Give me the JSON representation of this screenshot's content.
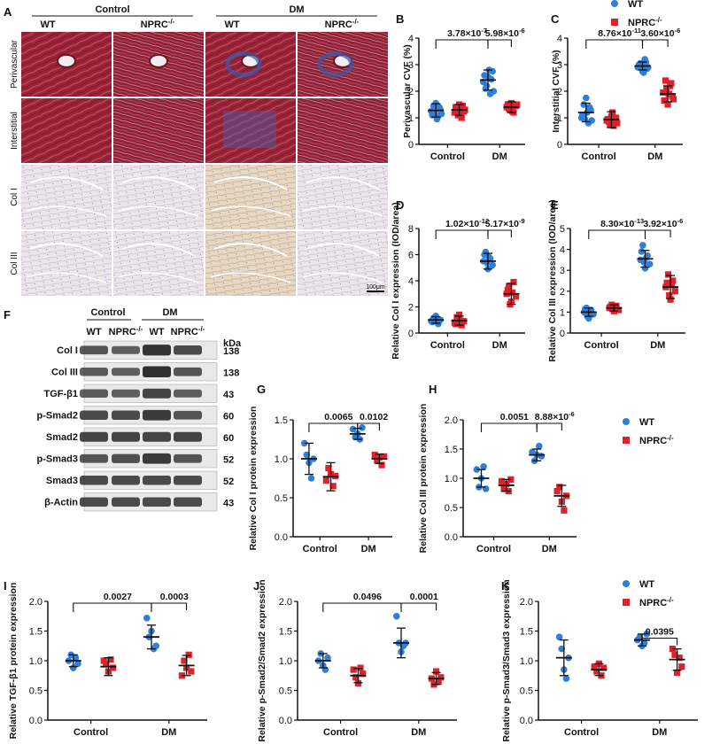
{
  "colors": {
    "wt": "#2f7fd8",
    "nprc": "#e0202a",
    "axis": "#111111",
    "stain_red": "#9a2236",
    "stain_blue": "#3a5aa8",
    "ihc_bg": "#ece6e8",
    "blot_bg": "#e9e9e9",
    "band": "#2a2a2a"
  },
  "legend_icons": {
    "wt": "circle-marker",
    "nprc": "square-marker"
  },
  "panel_a": {
    "letter": "A",
    "group_control": "Control",
    "group_dm": "DM",
    "col_labels": [
      "WT",
      "NPRC-/-",
      "WT",
      "NPRC-/-"
    ],
    "row_labels": [
      "Perivascular",
      "Interstitial",
      "Col I",
      "Col III"
    ],
    "scale_bar": "100μm"
  },
  "panel_f": {
    "letter": "F",
    "group_control": "Control",
    "group_dm": "DM",
    "col_labels": [
      "WT",
      "NPRC-/-",
      "WT",
      "NPRC-/-"
    ],
    "kda_label": "kDa",
    "proteins": [
      "Col I",
      "Col III",
      "TGF-β1",
      "p-Smad2",
      "Smad2",
      "p-Smad3",
      "Smad3",
      "β-Actin"
    ],
    "kda": [
      "138",
      "138",
      "43",
      "60",
      "60",
      "52",
      "52",
      "43"
    ]
  },
  "chart_data": [
    {
      "panel": "B",
      "type": "scatter",
      "ylabel": "Perivascular CVF (%)",
      "ylim": [
        0,
        4
      ],
      "yticks": [
        "0",
        "1",
        "2",
        "3",
        "4"
      ],
      "categories": [
        "Control",
        "DM"
      ],
      "series": [
        {
          "name": "WT",
          "values": [
            [
              1.25,
              1.45,
              1.55,
              1.05,
              1.3,
              1.1,
              1.2,
              0.95,
              1.4,
              1.15
            ],
            [
              2.35,
              2.1,
              2.55,
              1.9,
              2.75,
              2.6,
              2.2,
              2.8,
              2.45,
              2.0
            ]
          ],
          "mean": [
            1.28,
            2.42
          ],
          "sd": [
            0.25,
            0.38
          ]
        },
        {
          "name": "NPRC-/-",
          "values": [
            [
              1.2,
              1.35,
              1.5,
              1.0,
              1.25,
              1.4,
              1.1,
              1.3,
              1.45,
              1.3
            ],
            [
              1.4,
              1.35,
              1.55,
              1.2,
              1.45,
              1.5,
              1.3,
              1.25,
              1.45,
              1.5
            ]
          ],
          "mean": [
            1.3,
            1.4
          ],
          "sd": [
            0.2,
            0.2
          ]
        }
      ],
      "annotations": [
        {
          "text": "3.78×10-7"
        },
        {
          "text": "5.98×10-6"
        }
      ]
    },
    {
      "panel": "C",
      "type": "scatter",
      "ylabel": "Interstitial CVF (%)",
      "ylim": [
        0,
        4
      ],
      "yticks": [
        "0",
        "1",
        "2",
        "3",
        "4"
      ],
      "categories": [
        "Control",
        "DM"
      ],
      "series": [
        {
          "name": "WT",
          "values": [
            [
              1.0,
              1.5,
              1.75,
              0.8,
              1.3,
              1.1,
              0.95,
              1.2,
              1.4,
              0.9
            ],
            [
              2.9,
              3.05,
              2.75,
              3.2,
              2.85,
              3.0,
              2.95,
              2.7,
              3.1,
              2.9
            ]
          ],
          "mean": [
            1.2,
            2.95
          ],
          "sd": [
            0.35,
            0.15
          ]
        },
        {
          "name": "NPRC-/-",
          "values": [
            [
              0.9,
              0.85,
              1.05,
              0.7,
              1.0,
              0.95,
              0.75,
              1.2,
              0.9,
              0.8
            ],
            [
              1.95,
              2.4,
              1.5,
              2.2,
              1.8,
              1.65,
              2.1,
              1.9,
              2.3,
              1.7
            ]
          ],
          "mean": [
            0.93,
            1.9
          ],
          "sd": [
            0.3,
            0.3
          ]
        }
      ],
      "annotations": [
        {
          "text": "8.76×10-11"
        },
        {
          "text": "3.60×10-6"
        }
      ]
    },
    {
      "panel": "D",
      "type": "scatter",
      "ylabel": "Relative Col I expression (IOD/area)",
      "ylim": [
        0,
        8
      ],
      "yticks": [
        "0",
        "2",
        "4",
        "6",
        "8"
      ],
      "categories": [
        "Control",
        "DM"
      ],
      "series": [
        {
          "name": "WT",
          "values": [
            [
              0.9,
              1.15,
              1.3,
              0.7,
              1.0,
              0.85,
              1.1,
              1.05
            ],
            [
              5.5,
              6.2,
              4.9,
              5.7,
              5.2,
              6.0,
              5.4,
              5.8
            ]
          ],
          "mean": [
            1.0,
            5.5
          ],
          "sd": [
            0.25,
            0.6
          ]
        },
        {
          "name": "NPRC-/-",
          "values": [
            [
              0.8,
              1.2,
              1.4,
              0.6,
              0.9,
              0.7,
              1.1,
              0.95
            ],
            [
              3.0,
              3.6,
              2.4,
              3.9,
              2.8,
              3.3,
              2.2,
              3.1
            ]
          ],
          "mean": [
            0.95,
            3.0
          ],
          "sd": [
            0.35,
            0.8
          ]
        }
      ],
      "annotations": [
        {
          "text": "1.02×10-12"
        },
        {
          "text": "5.17×10-9"
        }
      ]
    },
    {
      "panel": "E",
      "type": "scatter",
      "ylabel": "Relative Col III expression (IOD/area)",
      "ylim": [
        0,
        5
      ],
      "yticks": [
        "0",
        "1",
        "2",
        "3",
        "4",
        "5"
      ],
      "categories": [
        "Control",
        "DM"
      ],
      "series": [
        {
          "name": "WT",
          "values": [
            [
              1.0,
              1.2,
              0.7,
              1.1,
              0.9,
              1.15,
              0.8,
              1.05
            ],
            [
              3.5,
              4.2,
              3.1,
              3.7,
              3.3,
              3.9,
              3.4,
              3.6
            ]
          ],
          "mean": [
            1.0,
            3.55
          ],
          "sd": [
            0.2,
            0.4
          ]
        },
        {
          "name": "NPRC-/-",
          "values": [
            [
              1.2,
              1.35,
              1.05,
              1.3,
              1.1,
              1.25,
              1.15,
              1.2
            ],
            [
              2.2,
              2.8,
              1.6,
              2.5,
              2.0,
              2.4,
              1.8,
              2.3
            ]
          ],
          "mean": [
            1.2,
            2.2
          ],
          "sd": [
            0.15,
            0.55
          ]
        }
      ],
      "annotations": [
        {
          "text": "8.30×10-13"
        },
        {
          "text": "3.92×10-6"
        }
      ]
    },
    {
      "panel": "G",
      "type": "scatter",
      "ylabel": "Relative Col I protein expression",
      "ylim": [
        0,
        1.5
      ],
      "yticks": [
        "0.0",
        "0.5",
        "1.0",
        "1.5"
      ],
      "categories": [
        "Control",
        "DM"
      ],
      "series": [
        {
          "name": "WT",
          "values": [
            [
              1.2,
              1.05,
              0.95,
              0.75,
              1.0
            ],
            [
              1.38,
              1.28,
              1.32,
              1.25,
              1.4
            ]
          ],
          "mean": [
            1.0,
            1.32
          ],
          "sd": [
            0.2,
            0.07
          ]
        },
        {
          "name": "NPRC-/-",
          "values": [
            [
              0.72,
              0.88,
              0.8,
              0.65,
              0.78
            ],
            [
              1.05,
              0.98,
              1.02,
              0.92,
              1.03
            ]
          ],
          "mean": [
            0.77,
            1.0
          ],
          "sd": [
            0.18,
            0.06
          ]
        }
      ],
      "annotations": [
        {
          "text": "0.0065"
        },
        {
          "text": "0.0102"
        }
      ]
    },
    {
      "panel": "H",
      "type": "scatter",
      "ylabel": "Relative Col III protein expression",
      "ylim": [
        0,
        2.0
      ],
      "yticks": [
        "0.0",
        "0.5",
        "1.0",
        "1.5",
        "2.0"
      ],
      "categories": [
        "Control",
        "DM"
      ],
      "series": [
        {
          "name": "WT",
          "values": [
            [
              1.15,
              0.85,
              1.0,
              1.2,
              0.82
            ],
            [
              1.45,
              1.3,
              1.4,
              1.55,
              1.38
            ]
          ],
          "mean": [
            1.0,
            1.4
          ],
          "sd": [
            0.15,
            0.1
          ]
        },
        {
          "name": "NPRC-/-",
          "values": [
            [
              0.95,
              0.82,
              0.9,
              0.78,
              0.98
            ],
            [
              0.78,
              0.85,
              0.6,
              0.45,
              0.7
            ]
          ],
          "mean": [
            0.88,
            0.7
          ],
          "sd": [
            0.1,
            0.18
          ]
        }
      ],
      "annotations": [
        {
          "text": "0.0051"
        },
        {
          "text": "8.88×10-6"
        }
      ]
    },
    {
      "panel": "I",
      "type": "scatter",
      "ylabel": "Relative TGF-β1 protein expression",
      "ylim": [
        0,
        2.0
      ],
      "yticks": [
        "0.0",
        "0.5",
        "1.0",
        "1.5",
        "2.0"
      ],
      "categories": [
        "Control",
        "DM"
      ],
      "series": [
        {
          "name": "WT",
          "values": [
            [
              1.0,
              1.1,
              0.88,
              1.05,
              0.95
            ],
            [
              1.72,
              1.4,
              1.5,
              1.2,
              1.25
            ]
          ],
          "mean": [
            1.0,
            1.4
          ],
          "sd": [
            0.1,
            0.2
          ]
        },
        {
          "name": "NPRC-/-",
          "values": [
            [
              1.0,
              0.95,
              0.82,
              1.02,
              0.88
            ],
            [
              0.75,
              1.0,
              0.88,
              1.1,
              0.82
            ]
          ],
          "mean": [
            0.9,
            0.92
          ],
          "sd": [
            0.15,
            0.17
          ]
        }
      ],
      "annotations": [
        {
          "text": "0.0027"
        },
        {
          "text": "0.0003"
        }
      ]
    },
    {
      "panel": "J",
      "type": "scatter",
      "ylabel": "Relative p-Smad2/Smad2 expression",
      "ylim": [
        0,
        2.0
      ],
      "yticks": [
        "0.0",
        "0.5",
        "1.0",
        "1.5",
        "2.0"
      ],
      "categories": [
        "Control",
        "DM"
      ],
      "series": [
        {
          "name": "WT",
          "values": [
            [
              1.0,
              1.12,
              0.92,
              0.85,
              1.05
            ],
            [
              1.75,
              1.3,
              1.15,
              1.25,
              1.3
            ]
          ],
          "mean": [
            1.0,
            1.3
          ],
          "sd": [
            0.12,
            0.25
          ]
        },
        {
          "name": "NPRC-/-",
          "values": [
            [
              0.85,
              0.72,
              0.62,
              0.88,
              0.78
            ],
            [
              0.7,
              0.6,
              0.82,
              0.65,
              0.72
            ]
          ],
          "mean": [
            0.75,
            0.7
          ],
          "sd": [
            0.12,
            0.1
          ]
        }
      ],
      "annotations": [
        {
          "text": "0.0496"
        },
        {
          "text": "0.0001"
        }
      ]
    },
    {
      "panel": "K",
      "type": "scatter",
      "ylabel": "Relative p-Smad3/Smad3 expression",
      "ylim": [
        0,
        2.0
      ],
      "yticks": [
        "0.0",
        "0.5",
        "1.0",
        "1.5",
        "2.0"
      ],
      "categories": [
        "Control",
        "DM"
      ],
      "series": [
        {
          "name": "WT",
          "values": [
            [
              1.4,
              1.2,
              0.85,
              0.7,
              1.05
            ],
            [
              1.35,
              1.4,
              1.25,
              1.3,
              1.45
            ]
          ],
          "mean": [
            1.05,
            1.35
          ],
          "sd": [
            0.3,
            0.1
          ]
        },
        {
          "name": "NPRC-/-",
          "values": [
            [
              0.9,
              0.82,
              0.95,
              0.75,
              0.88
            ],
            [
              1.2,
              1.1,
              0.8,
              1.05,
              0.9
            ]
          ],
          "mean": [
            0.85,
            1.02
          ],
          "sd": [
            0.1,
            0.18
          ]
        }
      ],
      "annotations": [
        {
          "text": "0.0395"
        }
      ]
    }
  ],
  "legend": {
    "wt": "WT",
    "nprc": "NPRC-/-"
  }
}
